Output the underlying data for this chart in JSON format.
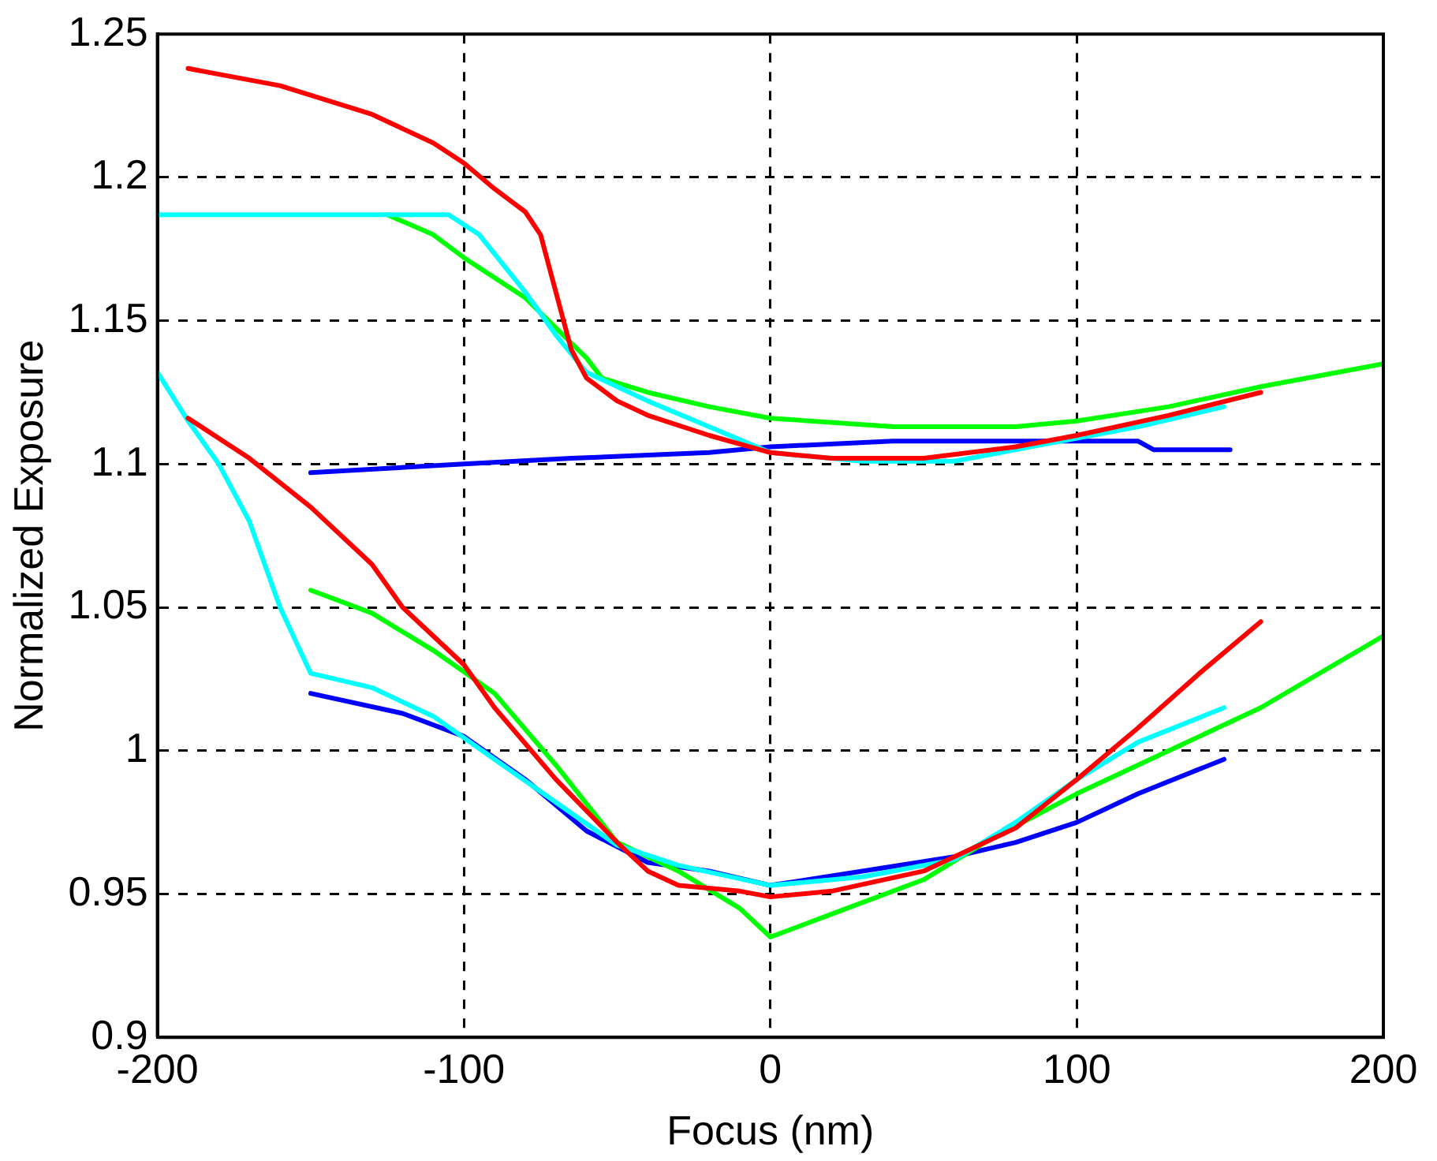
{
  "chart_data": {
    "type": "line",
    "xlabel": "Focus (nm)",
    "ylabel": "Normalized Exposure",
    "xlim": [
      -200,
      200
    ],
    "xticks": [
      -200,
      -100,
      0,
      100,
      200
    ],
    "ylim": [
      0.9,
      1.25
    ],
    "yticks": [
      0.9,
      0.95,
      1,
      1.05,
      1.1,
      1.15,
      1.2,
      1.25
    ],
    "grid": true,
    "legend": false,
    "marker": "none",
    "line_style": "solid",
    "series": [
      {
        "color": "#ff0000",
        "x": [
          -190,
          -160,
          -130,
          -110,
          -100,
          -90,
          -80,
          -75,
          -70,
          -65,
          -60,
          -50,
          -40,
          -20,
          0,
          20,
          50,
          80,
          100,
          130,
          160
        ],
        "values": [
          1.238,
          1.232,
          1.222,
          1.212,
          1.205,
          1.196,
          1.188,
          1.18,
          1.16,
          1.14,
          1.13,
          1.122,
          1.117,
          1.11,
          1.104,
          1.102,
          1.102,
          1.106,
          1.11,
          1.117,
          1.125
        ]
      },
      {
        "color": "#00ffff",
        "x": [
          -200,
          -105,
          -95,
          -80,
          -70,
          -60,
          -40,
          -20,
          0,
          30,
          60,
          90,
          120,
          148
        ],
        "values": [
          1.187,
          1.187,
          1.18,
          1.16,
          1.145,
          1.132,
          1.122,
          1.113,
          1.104,
          1.101,
          1.101,
          1.107,
          1.113,
          1.12
        ]
      },
      {
        "color": "#00ff00",
        "x": [
          -125,
          -110,
          -100,
          -80,
          -60,
          -55,
          -40,
          -20,
          0,
          40,
          80,
          100,
          130,
          160,
          180,
          200
        ],
        "values": [
          1.187,
          1.18,
          1.172,
          1.158,
          1.137,
          1.13,
          1.125,
          1.12,
          1.116,
          1.113,
          1.113,
          1.115,
          1.12,
          1.127,
          1.131,
          1.135
        ]
      },
      {
        "color": "#0000ff",
        "x": [
          -150,
          -100,
          -65,
          -20,
          0,
          40,
          100,
          120,
          125,
          150
        ],
        "values": [
          1.097,
          1.1,
          1.102,
          1.104,
          1.106,
          1.108,
          1.108,
          1.108,
          1.105,
          1.105
        ]
      },
      {
        "color": "#ff0000",
        "x": [
          -190,
          -170,
          -150,
          -130,
          -120,
          -100,
          -90,
          -70,
          -50,
          -40,
          -30,
          -10,
          0,
          20,
          50,
          80,
          100,
          120,
          140,
          160
        ],
        "values": [
          1.116,
          1.102,
          1.085,
          1.065,
          1.05,
          1.03,
          1.015,
          0.99,
          0.968,
          0.958,
          0.953,
          0.951,
          0.949,
          0.951,
          0.958,
          0.973,
          0.99,
          1.008,
          1.027,
          1.045
        ]
      },
      {
        "color": "#00ffff",
        "x": [
          -200,
          -190,
          -180,
          -170,
          -160,
          -150,
          -130,
          -110,
          -90,
          -70,
          -50,
          -30,
          0,
          30,
          60,
          80,
          100,
          120,
          148
        ],
        "values": [
          1.132,
          1.115,
          1.1,
          1.08,
          1.05,
          1.027,
          1.022,
          1.012,
          0.997,
          0.982,
          0.967,
          0.96,
          0.953,
          0.956,
          0.962,
          0.975,
          0.99,
          1.003,
          1.015
        ]
      },
      {
        "color": "#00ff00",
        "x": [
          -150,
          -130,
          -110,
          -90,
          -70,
          -50,
          -30,
          -10,
          0,
          20,
          50,
          70,
          100,
          130,
          160,
          200
        ],
        "values": [
          1.056,
          1.048,
          1.035,
          1.02,
          0.995,
          0.968,
          0.958,
          0.945,
          0.935,
          0.943,
          0.955,
          0.968,
          0.985,
          1.0,
          1.015,
          1.04
        ]
      },
      {
        "color": "#0000ff",
        "x": [
          -150,
          -120,
          -100,
          -80,
          -60,
          -40,
          -20,
          0,
          30,
          60,
          80,
          100,
          120,
          148
        ],
        "values": [
          1.02,
          1.013,
          1.005,
          0.99,
          0.972,
          0.961,
          0.958,
          0.953,
          0.958,
          0.963,
          0.968,
          0.975,
          0.985,
          0.997
        ]
      }
    ]
  }
}
